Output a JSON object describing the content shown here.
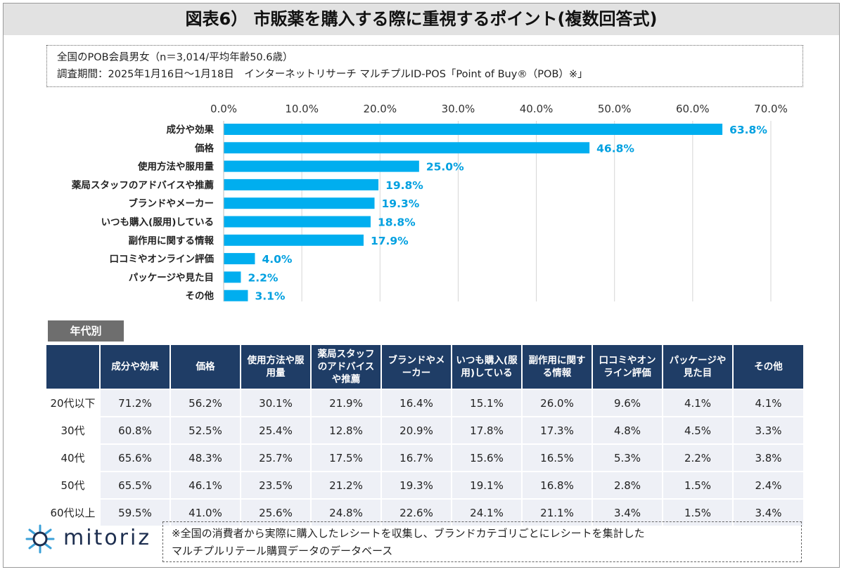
{
  "title": "図表6） 市販薬を購入する際に重視するポイント(複数回答式)",
  "info": {
    "line1": "全国のPOB会員男女（n＝3,014/平均年齢50.6歳）",
    "line2": "調査期間：2025年1月16日～1月18日　インターネットリサーチ マルチプルID-POS「Point of Buy®（POB）※」"
  },
  "chart_data": {
    "type": "bar",
    "orientation": "horizontal",
    "categories": [
      "成分や効果",
      "価格",
      "使用方法や服用量",
      "薬局スタッフのアドバイスや推薦",
      "ブランドやメーカー",
      "いつも購入(服用)している",
      "副作用に関する情報",
      "口コミやオンライン評価",
      "パッケージや見た目",
      "その他"
    ],
    "values": [
      63.8,
      46.8,
      25.0,
      19.8,
      19.3,
      18.8,
      17.9,
      4.0,
      2.2,
      3.1
    ],
    "value_labels": [
      "63.8%",
      "46.8%",
      "25.0%",
      "19.8%",
      "19.3%",
      "18.8%",
      "17.9%",
      "4.0%",
      "2.2%",
      "3.1%"
    ],
    "xlim": [
      0,
      70
    ],
    "ticks": [
      "0.0%",
      "10.0%",
      "20.0%",
      "30.0%",
      "40.0%",
      "50.0%",
      "60.0%",
      "70.0%"
    ],
    "grid": true,
    "bar_color": "#00aeef",
    "label_color": "#00a0e0"
  },
  "age_section": {
    "tag": "年代別",
    "headers": [
      "",
      "成分や効果",
      "価格",
      "使用方法や服用量",
      "薬局スタッフのアドバイスや推薦",
      "ブランドやメーカー",
      "いつも購入(服用)している",
      "副作用に関する情報",
      "口コミやオンライン評価",
      "パッケージや見た目",
      "その他"
    ],
    "rows": [
      [
        "20代以下",
        "71.2%",
        "56.2%",
        "30.1%",
        "21.9%",
        "16.4%",
        "15.1%",
        "26.0%",
        "9.6%",
        "4.1%",
        "4.1%"
      ],
      [
        "30代",
        "60.8%",
        "52.5%",
        "25.4%",
        "12.8%",
        "20.9%",
        "17.8%",
        "17.3%",
        "4.8%",
        "4.5%",
        "3.3%"
      ],
      [
        "40代",
        "65.6%",
        "48.3%",
        "25.7%",
        "17.5%",
        "16.7%",
        "15.6%",
        "16.5%",
        "5.3%",
        "2.2%",
        "3.8%"
      ],
      [
        "50代",
        "65.5%",
        "46.1%",
        "23.5%",
        "21.2%",
        "19.3%",
        "19.1%",
        "16.8%",
        "2.8%",
        "1.5%",
        "2.4%"
      ],
      [
        "60代以上",
        "59.5%",
        "41.0%",
        "25.6%",
        "24.8%",
        "22.6%",
        "24.1%",
        "21.1%",
        "3.4%",
        "1.5%",
        "3.4%"
      ]
    ],
    "header_color": "#1f3d66"
  },
  "logo": {
    "text": "mitoriz",
    "icon": "mitoriz-logo-icon"
  },
  "note": {
    "line1": "※全国の消費者から実際に購入したレシートを収集し、ブランドカテゴリごとにレシートを集計した",
    "line2": "マルチプルリテール購買データのデータベース"
  }
}
